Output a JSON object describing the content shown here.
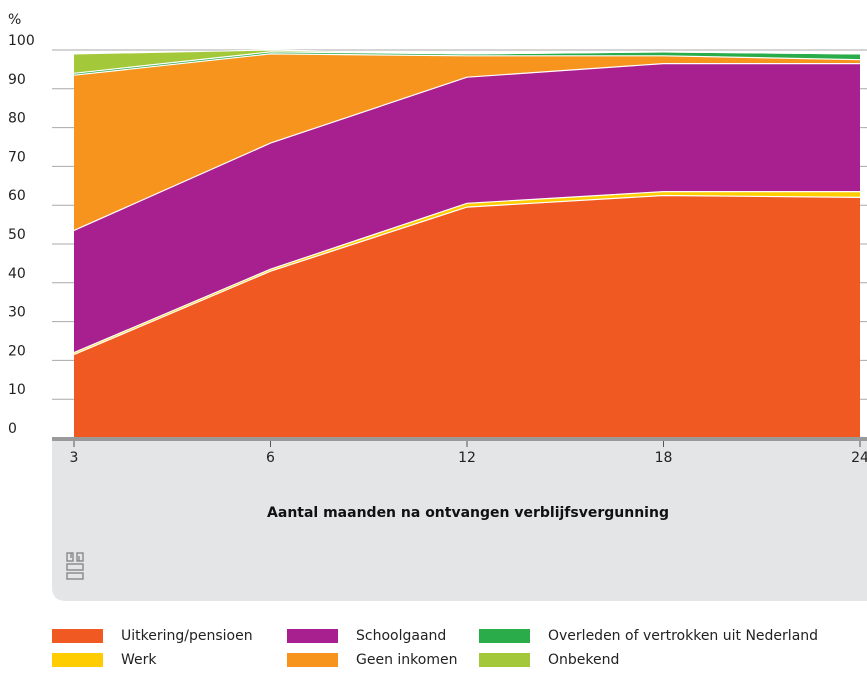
{
  "chart_data": {
    "type": "area",
    "stacked": true,
    "ylabel": "%",
    "xlabel": "Aantal maanden na ontvangen verblijfsvergunning",
    "ylim": [
      0,
      100
    ],
    "yticks": [
      0,
      10,
      20,
      30,
      40,
      50,
      60,
      70,
      80,
      90,
      100
    ],
    "x": [
      3,
      6,
      12,
      18,
      24
    ],
    "series": [
      {
        "name": "Uitkering/pensioen",
        "color": "#f05a22",
        "values": [
          21.5,
          43.0,
          59.5,
          62.5,
          62.0
        ]
      },
      {
        "name": "Werk",
        "color": "#ffcc00",
        "values": [
          0.5,
          0.5,
          1.0,
          1.0,
          1.5
        ]
      },
      {
        "name": "Schoolgaand",
        "color": "#a81f8f",
        "values": [
          31.5,
          32.5,
          32.5,
          33.0,
          33.0
        ]
      },
      {
        "name": "Geen inkomen",
        "color": "#f7941d",
        "values": [
          40.0,
          23.0,
          5.5,
          2.0,
          1.0
        ]
      },
      {
        "name": "Overleden of vertrokken uit Nederland",
        "color": "#2bac4a",
        "values": [
          0.5,
          0.5,
          0.5,
          1.0,
          1.5
        ]
      },
      {
        "name": "Onbekend",
        "color": "#a3c93a",
        "values": [
          5.0,
          0.5,
          0.0,
          0.0,
          0.0
        ]
      }
    ],
    "grid": "y",
    "legend_position": "bottom"
  }
}
